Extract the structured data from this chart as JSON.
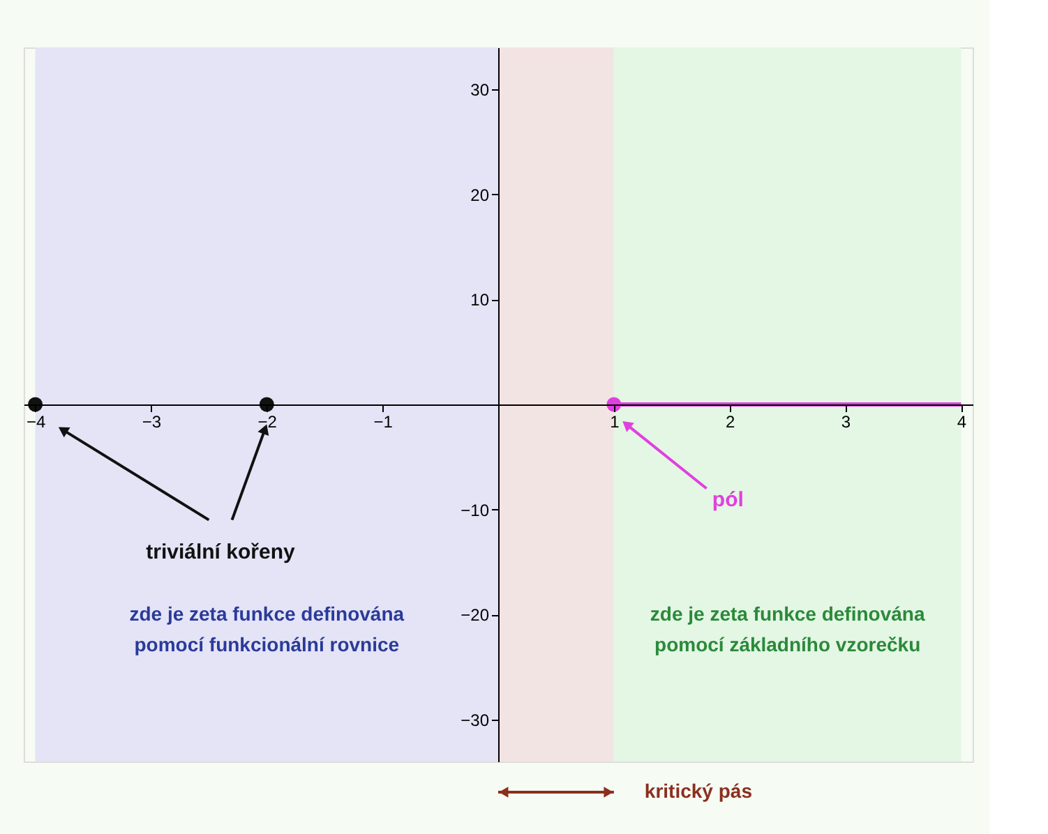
{
  "chart_data": {
    "type": "scatter",
    "xlim": [
      -4.1,
      4.1
    ],
    "ylim": [
      -34,
      34
    ],
    "xticks": [
      {
        "value": -4,
        "label": "−4"
      },
      {
        "value": -3,
        "label": "−3"
      },
      {
        "value": -2,
        "label": "−2"
      },
      {
        "value": -1,
        "label": "−1"
      },
      1,
      2,
      3,
      4
    ],
    "yticks": [
      {
        "value": -30,
        "label": "−30"
      },
      {
        "value": -20,
        "label": "−20"
      },
      {
        "value": -10,
        "label": "−10"
      },
      10,
      20,
      30
    ],
    "grid": false,
    "series": [
      {
        "color": "#111111",
        "x": [
          -4,
          -2
        ],
        "values": [
          0,
          0
        ],
        "marker": "circle"
      },
      {
        "type": "line",
        "color": "#e040e0",
        "x": [
          1,
          4
        ],
        "values": [
          0,
          0
        ],
        "marker": "none"
      },
      {
        "color": "#e040e0",
        "x": [
          1
        ],
        "values": [
          0
        ],
        "marker": "circle"
      }
    ],
    "bands": [
      {
        "axis": "x",
        "from": -4,
        "to": 0,
        "label": "zde je zeta funkce definována\npomocí funkcionální rovnice",
        "color": "#e4e4f6"
      },
      {
        "axis": "x",
        "from": 0,
        "to": 1,
        "label": "kritický pás",
        "color": "#f3e4e4"
      },
      {
        "axis": "x",
        "from": 1,
        "to": 4,
        "label": "zde je zeta funkce definována\npomocí základního vzorečku",
        "color": "#e4f6e4"
      }
    ],
    "annotations": [
      "triviální kořeny",
      "pól"
    ]
  }
}
